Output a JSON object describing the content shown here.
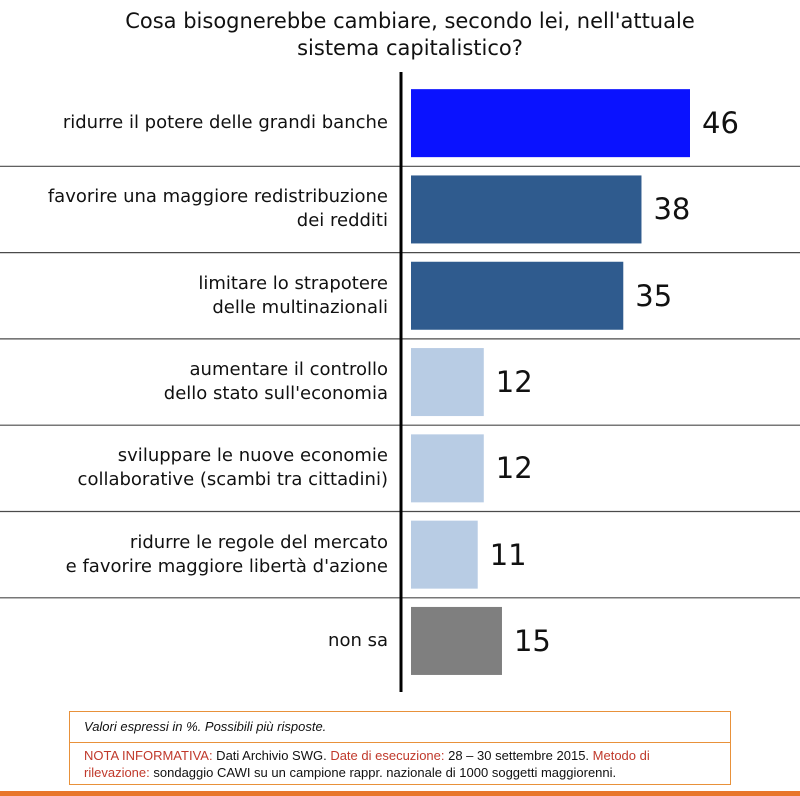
{
  "title": {
    "line1": "Cosa bisognerebbe cambiare, secondo lei, nell'attuale",
    "line2": "sistema capitalistico?"
  },
  "chart_data": {
    "type": "bar",
    "orientation": "horizontal",
    "categories": [
      [
        "ridurre il potere delle grandi banche"
      ],
      [
        "favorire una maggiore redistribuzione",
        "dei redditi"
      ],
      [
        "limitare lo strapotere",
        "delle multinazionali"
      ],
      [
        "aumentare il controllo",
        "dello stato sull'economia"
      ],
      [
        "sviluppare le nuove economie",
        "collaborative (scambi tra cittadini)"
      ],
      [
        "ridurre le regole del mercato",
        "e favorire maggiore libertà d'azione"
      ],
      [
        "non sa"
      ]
    ],
    "values": [
      46,
      38,
      35,
      12,
      12,
      11,
      15
    ],
    "value_labels": [
      "46",
      "38",
      "35",
      "12",
      "12",
      "11",
      "15"
    ],
    "bar_colors": [
      "#0a12ff",
      "#2f5b8e",
      "#2f5b8e",
      "#b8cce4",
      "#b8cce4",
      "#b8cce4",
      "#7f7f7f"
    ],
    "xlim": [
      0,
      50
    ],
    "xlabel": "",
    "ylabel": "",
    "grid": false,
    "row_separators": true
  },
  "notes": {
    "line1": "Valori espressi in %. Possibili più risposte.",
    "nota_label": "NOTA INFORMATIVA:",
    "nota_text": " Dati Archivio SWG. ",
    "date_label": "Date di esecuzione:",
    "date_text": " 28 – 30 settembre 2015. ",
    "metodo_label": "Metodo di rilevazione:",
    "metodo_text": " sondaggio CAWI su un campione rappr. nazionale di 1000 soggetti maggiorenni."
  },
  "colors": {
    "separator": "#4a4a4a",
    "axis": "#000000",
    "notes_border": "#e8913a",
    "accent_strip": "#e8762b"
  }
}
